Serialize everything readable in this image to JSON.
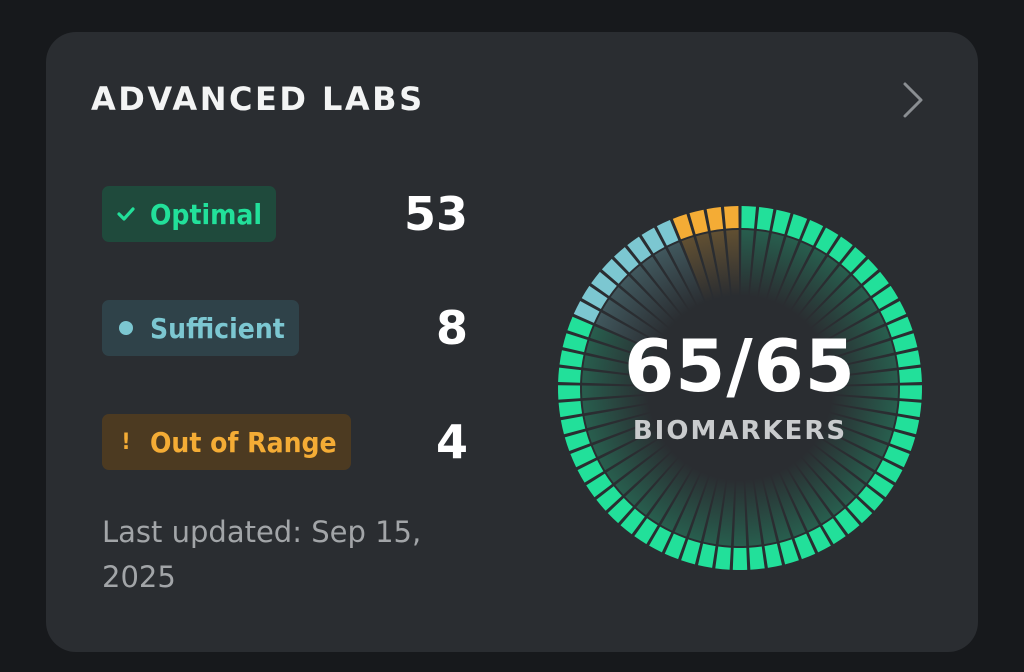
{
  "card": {
    "title": "ADVANCED LABS",
    "chevron_icon": "chevron-right-icon"
  },
  "statuses": [
    {
      "key": "optimal",
      "label": "Optimal",
      "icon": "check-icon",
      "count": "53",
      "color": "#22e09a"
    },
    {
      "key": "sufficient",
      "label": "Sufficient",
      "icon": "dot-icon",
      "count": "8",
      "color": "#7cc7d1"
    },
    {
      "key": "out_of_range",
      "label": "Out of Range",
      "icon": "exclamation-icon",
      "icon_glyph": "!",
      "count": "4",
      "color": "#f4ac35"
    }
  ],
  "last_updated": "Last updated: Sep 15, 2025",
  "gauge": {
    "value_text": "65/65",
    "label": "BIOMARKERS",
    "total": 65,
    "segments": {
      "optimal": 53,
      "sufficient": 8,
      "out_of_range": 4
    },
    "track_color": "#3a3f44"
  }
}
